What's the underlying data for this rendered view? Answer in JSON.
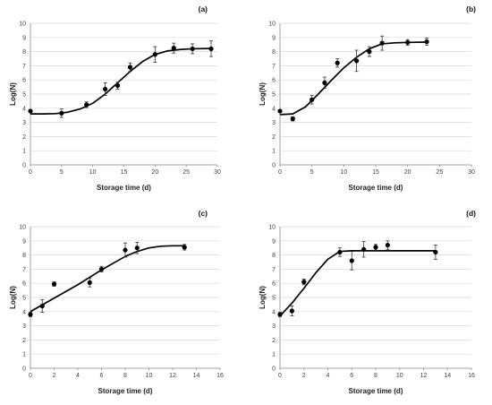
{
  "chart_data": [
    {
      "type": "scatter",
      "panel_label": "(a)",
      "xlabel": "Storage time (d)",
      "ylabel": "Log(N)",
      "xlim": [
        0,
        30
      ],
      "ylim": [
        0,
        10
      ],
      "xticks": [
        "0",
        "5",
        "10",
        "15",
        "20",
        "25",
        "30"
      ],
      "yticks": [
        "0",
        "1",
        "2",
        "3",
        "4",
        "5",
        "6",
        "7",
        "8",
        "9",
        "10"
      ],
      "points": [
        {
          "x": 0,
          "y": 3.8,
          "err": 0.1
        },
        {
          "x": 5,
          "y": 3.65,
          "err": 0.3
        },
        {
          "x": 9,
          "y": 4.25,
          "err": 0.2
        },
        {
          "x": 12,
          "y": 5.35,
          "err": 0.45
        },
        {
          "x": 14,
          "y": 5.6,
          "err": 0.25
        },
        {
          "x": 16,
          "y": 6.9,
          "err": 0.3
        },
        {
          "x": 20,
          "y": 7.8,
          "err": 0.55
        },
        {
          "x": 23,
          "y": 8.25,
          "err": 0.35
        },
        {
          "x": 26,
          "y": 8.2,
          "err": 0.35
        },
        {
          "x": 29,
          "y": 8.2,
          "err": 0.55
        }
      ],
      "curve": [
        [
          0,
          3.6
        ],
        [
          2,
          3.6
        ],
        [
          4,
          3.62
        ],
        [
          6,
          3.72
        ],
        [
          8,
          3.95
        ],
        [
          10,
          4.35
        ],
        [
          12,
          5.0
        ],
        [
          14,
          5.8
        ],
        [
          16,
          6.6
        ],
        [
          18,
          7.3
        ],
        [
          20,
          7.8
        ],
        [
          22,
          8.05
        ],
        [
          24,
          8.15
        ],
        [
          26,
          8.2
        ],
        [
          29,
          8.22
        ]
      ]
    },
    {
      "type": "scatter",
      "panel_label": "(b)",
      "xlabel": "Storage time (d)",
      "ylabel": "Log(N)",
      "xlim": [
        0,
        30
      ],
      "ylim": [
        0,
        10
      ],
      "xticks": [
        "0",
        "5",
        "10",
        "15",
        "20",
        "25",
        "30"
      ],
      "yticks": [
        "0",
        "1",
        "2",
        "3",
        "4",
        "5",
        "6",
        "7",
        "8",
        "9",
        "10"
      ],
      "points": [
        {
          "x": 0,
          "y": 3.8,
          "err": 0.1
        },
        {
          "x": 2,
          "y": 3.25,
          "err": 0.15
        },
        {
          "x": 5,
          "y": 4.6,
          "err": 0.3
        },
        {
          "x": 7,
          "y": 5.8,
          "err": 0.4
        },
        {
          "x": 9,
          "y": 7.2,
          "err": 0.3
        },
        {
          "x": 12,
          "y": 7.35,
          "err": 0.75
        },
        {
          "x": 14,
          "y": 8.0,
          "err": 0.35
        },
        {
          "x": 16,
          "y": 8.6,
          "err": 0.5
        },
        {
          "x": 20,
          "y": 8.65,
          "err": 0.2
        },
        {
          "x": 23,
          "y": 8.7,
          "err": 0.25
        }
      ],
      "curve": [
        [
          0,
          3.55
        ],
        [
          2,
          3.6
        ],
        [
          4,
          4.1
        ],
        [
          6,
          5.0
        ],
        [
          8,
          5.95
        ],
        [
          10,
          6.85
        ],
        [
          12,
          7.6
        ],
        [
          14,
          8.2
        ],
        [
          16,
          8.55
        ],
        [
          18,
          8.62
        ],
        [
          20,
          8.65
        ],
        [
          23,
          8.67
        ]
      ]
    },
    {
      "type": "scatter",
      "panel_label": "(c)",
      "xlabel": "Storage time (d)",
      "ylabel": "Log(N)",
      "xlim": [
        0,
        16
      ],
      "ylim": [
        0,
        10
      ],
      "xticks": [
        "0",
        "2",
        "4",
        "6",
        "8",
        "10",
        "12",
        "14",
        "16"
      ],
      "yticks": [
        "0",
        "1",
        "2",
        "3",
        "4",
        "5",
        "6",
        "7",
        "8",
        "9",
        "10"
      ],
      "points": [
        {
          "x": 0,
          "y": 3.8,
          "err": 0.15
        },
        {
          "x": 1,
          "y": 4.4,
          "err": 0.45
        },
        {
          "x": 2,
          "y": 5.95,
          "err": 0.15
        },
        {
          "x": 5,
          "y": 6.05,
          "err": 0.3
        },
        {
          "x": 6,
          "y": 7.0,
          "err": 0.2
        },
        {
          "x": 8,
          "y": 8.35,
          "err": 0.5
        },
        {
          "x": 9,
          "y": 8.5,
          "err": 0.4
        },
        {
          "x": 13,
          "y": 8.55,
          "err": 0.2
        }
      ],
      "curve": [
        [
          0,
          4.0
        ],
        [
          2,
          4.95
        ],
        [
          4,
          5.9
        ],
        [
          6,
          6.95
        ],
        [
          8,
          7.9
        ],
        [
          9,
          8.25
        ],
        [
          10,
          8.5
        ],
        [
          11,
          8.62
        ],
        [
          12,
          8.65
        ],
        [
          13,
          8.65
        ]
      ]
    },
    {
      "type": "scatter",
      "panel_label": "(d)",
      "xlabel": "Storage time (d)",
      "ylabel": "Log(N)",
      "xlim": [
        0,
        16
      ],
      "ylim": [
        0,
        10
      ],
      "xticks": [
        "0",
        "2",
        "4",
        "6",
        "8",
        "10",
        "12",
        "14",
        "16"
      ],
      "yticks": [
        "0",
        "1",
        "2",
        "3",
        "4",
        "5",
        "6",
        "7",
        "8",
        "9",
        "10"
      ],
      "points": [
        {
          "x": 0,
          "y": 3.8,
          "err": 0.15
        },
        {
          "x": 1,
          "y": 4.05,
          "err": 0.35
        },
        {
          "x": 2,
          "y": 6.1,
          "err": 0.2
        },
        {
          "x": 5,
          "y": 8.2,
          "err": 0.3
        },
        {
          "x": 6,
          "y": 7.6,
          "err": 0.65
        },
        {
          "x": 7,
          "y": 8.4,
          "err": 0.55
        },
        {
          "x": 8,
          "y": 8.55,
          "err": 0.2
        },
        {
          "x": 9,
          "y": 8.7,
          "err": 0.3
        },
        {
          "x": 13,
          "y": 8.2,
          "err": 0.5
        }
      ],
      "curve": [
        [
          0,
          3.7
        ],
        [
          1,
          4.6
        ],
        [
          2,
          5.65
        ],
        [
          3,
          6.75
        ],
        [
          4,
          7.7
        ],
        [
          5,
          8.25
        ],
        [
          6,
          8.3
        ],
        [
          8,
          8.3
        ],
        [
          13,
          8.3
        ]
      ]
    }
  ]
}
